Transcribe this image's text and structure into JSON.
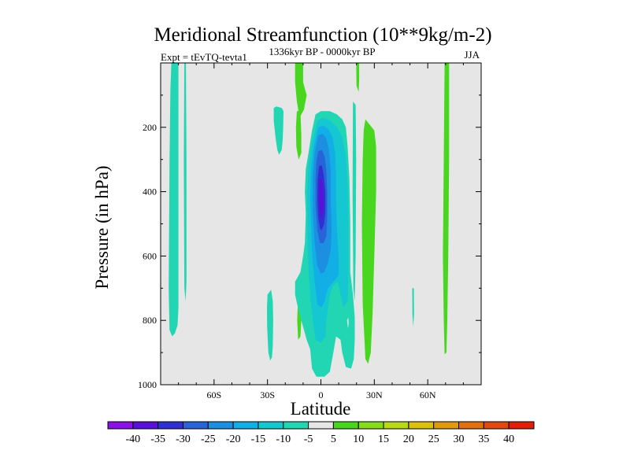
{
  "chart_data": {
    "type": "heatmap",
    "title": "Meridional Streamfunction (10**9kg/m-2)",
    "subtitle": "1336kyr BP - 0000kyr BP",
    "left_label": "Expt = tEvTQ-tevta1",
    "right_label": "JJA",
    "xlabel": "Latitude",
    "ylabel": "Pressure (in hPa)",
    "xlim": [
      -90,
      90
    ],
    "ylim": [
      1000,
      0
    ],
    "x_ticks": [
      {
        "value": -60,
        "label": "60S"
      },
      {
        "value": -30,
        "label": "30S"
      },
      {
        "value": 0,
        "label": "0"
      },
      {
        "value": 30,
        "label": "30N"
      },
      {
        "value": 60,
        "label": "60N"
      }
    ],
    "y_ticks": [
      {
        "value": 200,
        "label": "200"
      },
      {
        "value": 400,
        "label": "400"
      },
      {
        "value": 600,
        "label": "600"
      },
      {
        "value": 800,
        "label": "800"
      },
      {
        "value": 1000,
        "label": "1000"
      }
    ],
    "background_value_range": [
      -5,
      5
    ],
    "background_color": "#e6e6e6",
    "colorbar": {
      "labels": [
        "-40",
        "-35",
        "-30",
        "-25",
        "-20",
        "-15",
        "-10",
        "-5",
        "5",
        "10",
        "15",
        "20",
        "25",
        "30",
        "35",
        "40"
      ],
      "colors": [
        "#8a12e6",
        "#5a10d6",
        "#2f2fd2",
        "#2863d8",
        "#1c8fe0",
        "#12aee6",
        "#14c7d0",
        "#22d6b4",
        "#e6e6e6",
        "#48d61e",
        "#86dc1c",
        "#b8d818",
        "#dcc010",
        "#e09a10",
        "#e07010",
        "#e04a10",
        "#e01e0a"
      ]
    },
    "regions": [
      {
        "name": "cell-60s-band",
        "value": -7.5,
        "pts": [
          [
            -84,
            0
          ],
          [
            -80,
            0
          ],
          [
            -80,
            760
          ],
          [
            -80.5,
            815
          ],
          [
            -82,
            840
          ],
          [
            -83.5,
            850
          ],
          [
            -85,
            830
          ],
          [
            -85.5,
            700
          ],
          [
            -85,
            300
          ],
          [
            -84.5,
            80
          ]
        ]
      },
      {
        "name": "cell-60s-thin",
        "value": -7.5,
        "pts": [
          [
            -76.7,
            0
          ],
          [
            -75.8,
            0
          ],
          [
            -75.5,
            300
          ],
          [
            -75.5,
            680
          ],
          [
            -76,
            740
          ],
          [
            -76.7,
            700
          ],
          [
            -77,
            300
          ]
        ]
      },
      {
        "name": "cell-35s-upper",
        "value": -7.5,
        "pts": [
          [
            -26.5,
            140
          ],
          [
            -25,
            135
          ],
          [
            -22,
            140
          ],
          [
            -21,
            150
          ],
          [
            -21.2,
            200
          ],
          [
            -21.5,
            240
          ],
          [
            -22,
            270
          ],
          [
            -23.5,
            285
          ],
          [
            -24.5,
            270
          ],
          [
            -25.5,
            230
          ],
          [
            -26.5,
            180
          ]
        ]
      },
      {
        "name": "cell-30s-lower",
        "value": -7.5,
        "pts": [
          [
            -30,
            720
          ],
          [
            -28,
            705
          ],
          [
            -27,
            740
          ],
          [
            -26.8,
            800
          ],
          [
            -27,
            880
          ],
          [
            -27.5,
            915
          ],
          [
            -28.5,
            925
          ],
          [
            -29.5,
            900
          ],
          [
            -30.2,
            820
          ],
          [
            -30.3,
            760
          ]
        ]
      },
      {
        "name": "cell-15s-upper",
        "value": 7.5,
        "pts": [
          [
            -14.5,
            0
          ],
          [
            -10,
            0
          ],
          [
            -10,
            60
          ],
          [
            -8,
            100
          ],
          [
            -9.5,
            145
          ],
          [
            -12,
            170
          ],
          [
            -13.5,
            120
          ],
          [
            -14.5,
            60
          ]
        ]
      },
      {
        "name": "cell-15s-mid",
        "value": 7.5,
        "pts": [
          [
            -13.5,
            150
          ],
          [
            -11.5,
            150
          ],
          [
            -11,
            220
          ],
          [
            -11,
            280
          ],
          [
            -12.5,
            300
          ],
          [
            -13.8,
            260
          ],
          [
            -14,
            200
          ]
        ]
      },
      {
        "name": "cell-15s-lower",
        "value": 7.5,
        "pts": [
          [
            -12.8,
            720
          ],
          [
            -11.5,
            720
          ],
          [
            -11,
            800
          ],
          [
            -11.5,
            850
          ],
          [
            -12.8,
            860
          ],
          [
            -13.3,
            800
          ]
        ]
      },
      {
        "name": "cell-25n-band",
        "value": 7.5,
        "pts": [
          [
            25,
            175
          ],
          [
            30,
            210
          ],
          [
            31,
            260
          ],
          [
            31,
            400
          ],
          [
            30,
            600
          ],
          [
            29,
            780
          ],
          [
            28,
            900
          ],
          [
            26.5,
            935
          ],
          [
            25,
            920
          ],
          [
            23.5,
            750
          ],
          [
            23,
            500
          ],
          [
            23.5,
            300
          ],
          [
            24,
            210
          ]
        ]
      },
      {
        "name": "cell-20n-upper",
        "value": 7.5,
        "pts": [
          [
            19.8,
            0
          ],
          [
            21.5,
            0
          ],
          [
            21.5,
            50
          ],
          [
            21.2,
            90
          ],
          [
            20,
            70
          ]
        ]
      },
      {
        "name": "cell-30n-thin",
        "value": -7.5,
        "pts": [
          [
            18,
            120
          ],
          [
            19.5,
            130
          ],
          [
            19.8,
            300
          ],
          [
            19.5,
            600
          ],
          [
            19,
            740
          ],
          [
            18.2,
            700
          ],
          [
            17.8,
            400
          ]
        ]
      },
      {
        "name": "cell-50n-line",
        "value": -7.5,
        "pts": [
          [
            51.3,
            700
          ],
          [
            52.2,
            700
          ],
          [
            52.3,
            780
          ],
          [
            51.8,
            820
          ],
          [
            51.4,
            780
          ]
        ]
      },
      {
        "name": "cell-70n-band",
        "value": 7.5,
        "pts": [
          [
            69.5,
            0
          ],
          [
            72,
            0
          ],
          [
            72,
            300
          ],
          [
            71.5,
            600
          ],
          [
            71,
            800
          ],
          [
            70.5,
            900
          ],
          [
            69.5,
            905
          ],
          [
            69,
            800
          ],
          [
            68.5,
            600
          ],
          [
            69,
            300
          ]
        ]
      },
      {
        "name": "equatorial-cell-l1",
        "value": -7.5,
        "pts": [
          [
            -3,
            160
          ],
          [
            0,
            150
          ],
          [
            5,
            150
          ],
          [
            9,
            160
          ],
          [
            12,
            175
          ],
          [
            14,
            200
          ],
          [
            15,
            260
          ],
          [
            16,
            360
          ],
          [
            16.5,
            500
          ],
          [
            16.5,
            650
          ],
          [
            18,
            720
          ],
          [
            19,
            790
          ],
          [
            19,
            860
          ],
          [
            18.5,
            920
          ],
          [
            17,
            950
          ],
          [
            14,
            945
          ],
          [
            12,
            900
          ],
          [
            11,
            860
          ],
          [
            8.5,
            850
          ],
          [
            7,
            900
          ],
          [
            5,
            960
          ],
          [
            2,
            975
          ],
          [
            -2.5,
            975
          ],
          [
            -5,
            950
          ],
          [
            -6,
            890
          ],
          [
            -8,
            860
          ],
          [
            -10,
            820
          ],
          [
            -12.5,
            770
          ],
          [
            -14.5,
            720
          ],
          [
            -14.5,
            680
          ],
          [
            -11.5,
            650
          ],
          [
            -10,
            600
          ],
          [
            -9,
            560
          ],
          [
            -8.5,
            470
          ],
          [
            -9,
            400
          ],
          [
            -8.5,
            330
          ],
          [
            -7,
            280
          ],
          [
            -5,
            210
          ]
        ]
      },
      {
        "name": "equatorial-cell-l2",
        "value": -12.5,
        "pts": [
          [
            -2,
            180
          ],
          [
            1,
            170
          ],
          [
            5,
            178
          ],
          [
            9,
            200
          ],
          [
            12,
            230
          ],
          [
            14,
            290
          ],
          [
            15,
            380
          ],
          [
            15.5,
            500
          ],
          [
            15.5,
            650
          ],
          [
            15,
            740
          ],
          [
            12.5,
            760
          ],
          [
            11,
            720
          ],
          [
            9.5,
            680
          ],
          [
            7,
            690
          ],
          [
            5,
            720
          ],
          [
            3,
            800
          ],
          [
            2.5,
            850
          ],
          [
            0,
            870
          ],
          [
            -3,
            860
          ],
          [
            -4.5,
            800
          ],
          [
            -6,
            730
          ],
          [
            -7,
            640
          ],
          [
            -7.5,
            560
          ],
          [
            -7.5,
            470
          ],
          [
            -7.8,
            400
          ],
          [
            -7,
            320
          ],
          [
            -5,
            250
          ]
        ]
      },
      {
        "name": "equatorial-cell-l3",
        "value": -17.5,
        "pts": [
          [
            -1.5,
            200
          ],
          [
            1.5,
            195
          ],
          [
            4,
            205
          ],
          [
            6.5,
            230
          ],
          [
            8,
            280
          ],
          [
            8.5,
            350
          ],
          [
            8.5,
            430
          ],
          [
            9,
            520
          ],
          [
            10,
            600
          ],
          [
            10,
            660
          ],
          [
            7,
            680
          ],
          [
            4,
            700
          ],
          [
            2,
            740
          ],
          [
            0.5,
            760
          ],
          [
            -2,
            750
          ],
          [
            -3.5,
            680
          ],
          [
            -5,
            590
          ],
          [
            -5.5,
            500
          ],
          [
            -6,
            420
          ],
          [
            -5.5,
            330
          ],
          [
            -4,
            260
          ]
        ]
      },
      {
        "name": "equatorial-cell-l4",
        "value": -22.5,
        "pts": [
          [
            -1.5,
            225
          ],
          [
            1,
            220
          ],
          [
            3,
            235
          ],
          [
            4.5,
            270
          ],
          [
            5.5,
            330
          ],
          [
            5.5,
            430
          ],
          [
            6,
            520
          ],
          [
            5.5,
            580
          ],
          [
            4,
            620
          ],
          [
            2,
            650
          ],
          [
            0,
            655
          ],
          [
            -2,
            630
          ],
          [
            -3.5,
            560
          ],
          [
            -4.5,
            460
          ],
          [
            -4.5,
            350
          ],
          [
            -3.5,
            280
          ]
        ]
      },
      {
        "name": "equatorial-cell-l5",
        "value": -27.5,
        "pts": [
          [
            -1.5,
            275
          ],
          [
            0.5,
            270
          ],
          [
            2,
            290
          ],
          [
            3,
            330
          ],
          [
            3.5,
            400
          ],
          [
            3.5,
            480
          ],
          [
            3,
            540
          ],
          [
            1.5,
            560
          ],
          [
            -0.5,
            560
          ],
          [
            -2,
            520
          ],
          [
            -3,
            440
          ],
          [
            -3,
            360
          ],
          [
            -2.5,
            305
          ]
        ]
      },
      {
        "name": "equatorial-cell-l6",
        "value": -32.5,
        "pts": [
          [
            -1,
            320
          ],
          [
            0.5,
            318
          ],
          [
            1.5,
            345
          ],
          [
            2.5,
            400
          ],
          [
            2.5,
            460
          ],
          [
            1.8,
            500
          ],
          [
            0.5,
            520
          ],
          [
            -0.5,
            515
          ],
          [
            -1.5,
            480
          ],
          [
            -2,
            420
          ],
          [
            -1.8,
            360
          ]
        ]
      },
      {
        "name": "equatorial-cell-l7",
        "value": -37.5,
        "pts": [
          [
            -0.8,
            360
          ],
          [
            0.5,
            360
          ],
          [
            1.2,
            395
          ],
          [
            1.5,
            440
          ],
          [
            1,
            470
          ],
          [
            0,
            485
          ],
          [
            -0.8,
            460
          ],
          [
            -1.2,
            420
          ]
        ]
      },
      {
        "name": "cell-15n-low",
        "value": -2.5,
        "pts": [
          [
            14.7,
            800
          ],
          [
            15.4,
            790
          ],
          [
            15.6,
            810
          ],
          [
            15.2,
            825
          ]
        ]
      }
    ]
  }
}
